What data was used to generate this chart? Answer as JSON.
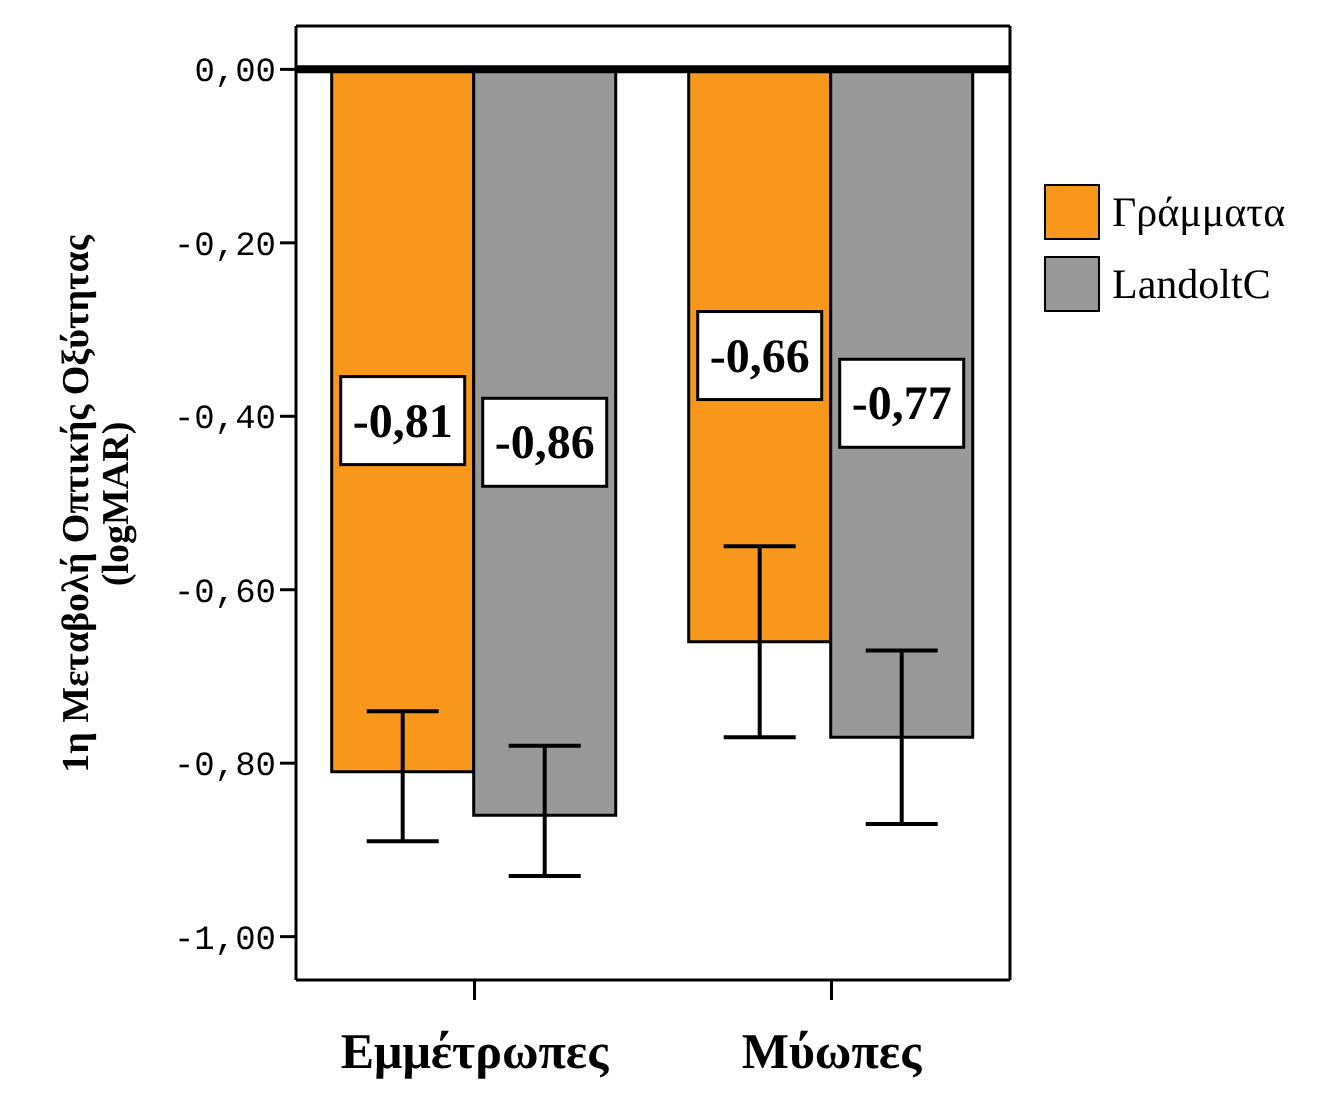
{
  "chart_data": {
    "type": "bar",
    "ylabel": "1η Μεταβολή Οπτικής Οξύτητας (logMAR)",
    "categories": [
      "Εμμέτρωπες",
      "Μύωπες"
    ],
    "series": [
      {
        "name": "Γράμματα",
        "color": "#f7981d",
        "values": [
          -0.81,
          -0.66
        ],
        "value_labels": [
          "-0,81",
          "-0,66"
        ],
        "errors": [
          [
            -0.89,
            -0.74
          ],
          [
            -0.77,
            -0.55
          ]
        ]
      },
      {
        "name": "LandoltC",
        "color": "#999999",
        "values": [
          -0.86,
          -0.77
        ],
        "value_labels": [
          "-0,86",
          "-0,77"
        ],
        "errors": [
          [
            -0.93,
            -0.78
          ],
          [
            -0.87,
            -0.67
          ]
        ]
      }
    ],
    "ylim": [
      -1.05,
      0.05
    ],
    "yticks": [
      {
        "value": 0,
        "label": "0,00"
      },
      {
        "value": -0.2,
        "label": "-0,20"
      },
      {
        "value": -0.4,
        "label": "-0,40"
      },
      {
        "value": -0.6,
        "label": "-0,60"
      },
      {
        "value": -0.8,
        "label": "-0,80"
      },
      {
        "value": -1,
        "label": "-1,00"
      }
    ],
    "ref_lines": [
      {
        "axis": "y",
        "value": 0,
        "color": "#000000"
      }
    ],
    "grid": false,
    "legend": "right"
  }
}
